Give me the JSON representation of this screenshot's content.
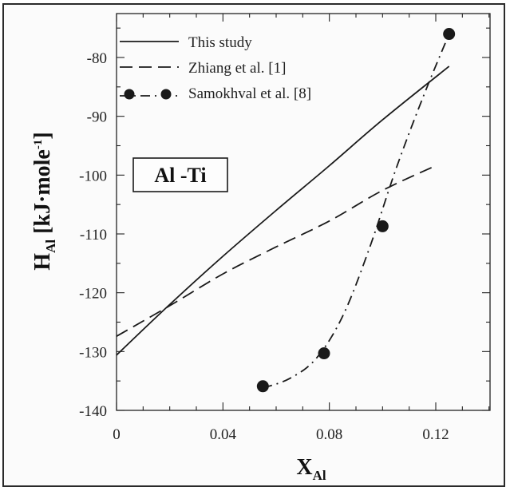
{
  "chart_data": {
    "type": "line",
    "title": "",
    "xlabel": {
      "main": "X",
      "sub": "Al"
    },
    "ylabel": {
      "main": "H",
      "sub": "Al",
      "unit_pre": " [kJ·mole",
      "unit_sup": "-1",
      "unit_post": "]"
    },
    "xlim": [
      0,
      0.14
    ],
    "ylim": [
      -140,
      -75
    ],
    "xticks": [
      0,
      0.04,
      0.08,
      0.12
    ],
    "xtick_labels": [
      "0",
      "0.04",
      "0.08",
      "0.12"
    ],
    "yticks": [
      -140,
      -130,
      -120,
      -110,
      -100,
      -90,
      -80
    ],
    "ytick_labels": [
      "-140",
      "-130",
      "-120",
      "-110",
      "-100",
      "-90",
      "-80"
    ],
    "grid": false,
    "legend_position": "top-left",
    "annotation": "Al -Ti",
    "series": [
      {
        "name": "This study",
        "style": "solid",
        "x": [
          0,
          0.02,
          0.04,
          0.06,
          0.08,
          0.1,
          0.125
        ],
        "y": [
          -130.6,
          -122.0,
          -113.8,
          -106.0,
          -98.4,
          -90.6,
          -81.5
        ]
      },
      {
        "name": "Zhiang et al. [1]",
        "style": "dashed",
        "x": [
          0,
          0.02,
          0.04,
          0.06,
          0.08,
          0.1,
          0.12
        ],
        "y": [
          -127.4,
          -122.2,
          -116.8,
          -112.2,
          -107.8,
          -102.6,
          -98.4
        ]
      },
      {
        "name": "Samokhval et al. [8]",
        "style": "dashdot",
        "points_x": [
          0.055,
          0.078,
          0.1,
          0.125
        ],
        "points_y": [
          -135.9,
          -130.3,
          -108.7,
          -76.0
        ],
        "curve_x": [
          0.055,
          0.065,
          0.075,
          0.085,
          0.095,
          0.105,
          0.115,
          0.125
        ],
        "curve_y": [
          -136.2,
          -134.6,
          -131.2,
          -124.0,
          -112.5,
          -99.0,
          -87.0,
          -76.0
        ]
      }
    ]
  }
}
